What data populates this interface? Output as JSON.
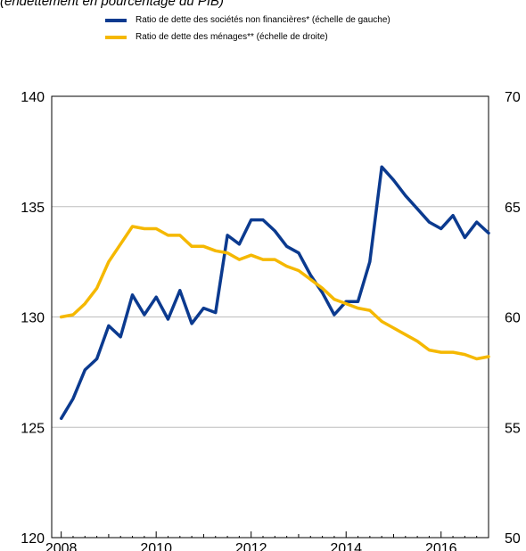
{
  "chart_data": {
    "type": "line",
    "subtitle": "(endettement en pourcentage du PIB)",
    "xlim": [
      2007.8,
      2017.0
    ],
    "x_ticks": [
      2008,
      2010,
      2012,
      2014,
      2016
    ],
    "x_tick_labels": [
      "2008",
      "2010",
      "2012",
      "2014",
      "2016"
    ],
    "y_left": {
      "lim": [
        120,
        140
      ],
      "ticks": [
        120,
        125,
        130,
        135,
        140
      ],
      "labels": [
        "120",
        "125",
        "130",
        "135",
        "140"
      ]
    },
    "y_right": {
      "lim": [
        50,
        70
      ],
      "ticks": [
        50,
        55,
        60,
        65,
        70
      ],
      "labels": [
        "50",
        "55",
        "60",
        "65",
        "70"
      ]
    },
    "grid": "horizontal",
    "legend_position": "top-center",
    "series": [
      {
        "name": "Ratio de dette des sociétés non financières* (échelle de gauche)",
        "axis": "left",
        "color": "#0b3a8f",
        "x": [
          2008.0,
          2008.25,
          2008.5,
          2008.75,
          2009.0,
          2009.25,
          2009.5,
          2009.75,
          2010.0,
          2010.25,
          2010.5,
          2010.75,
          2011.0,
          2011.25,
          2011.5,
          2011.75,
          2012.0,
          2012.25,
          2012.5,
          2012.75,
          2013.0,
          2013.25,
          2013.5,
          2013.75,
          2014.0,
          2014.25,
          2014.5,
          2014.75,
          2015.0,
          2015.25,
          2015.5,
          2015.75,
          2016.0,
          2016.25,
          2016.5,
          2016.75,
          2017.0
        ],
        "values": [
          125.4,
          126.3,
          127.6,
          128.1,
          129.6,
          129.1,
          131.0,
          130.1,
          130.9,
          129.9,
          131.2,
          129.7,
          130.4,
          130.2,
          133.7,
          133.3,
          134.4,
          134.4,
          133.9,
          133.2,
          132.9,
          131.9,
          131.1,
          130.1,
          130.7,
          130.7,
          132.5,
          136.8,
          136.2,
          135.5,
          134.9,
          134.3,
          134.0,
          134.6,
          133.6,
          134.3,
          133.8
        ]
      },
      {
        "name": "Ratio de dette des ménages** (échelle de droite)",
        "axis": "right",
        "color": "#f5b800",
        "x": [
          2008.0,
          2008.25,
          2008.5,
          2008.75,
          2009.0,
          2009.25,
          2009.5,
          2009.75,
          2010.0,
          2010.25,
          2010.5,
          2010.75,
          2011.0,
          2011.25,
          2011.5,
          2011.75,
          2012.0,
          2012.25,
          2012.5,
          2012.75,
          2013.0,
          2013.25,
          2013.5,
          2013.75,
          2014.0,
          2014.25,
          2014.5,
          2014.75,
          2015.0,
          2015.25,
          2015.5,
          2015.75,
          2016.0,
          2016.25,
          2016.5,
          2016.75,
          2017.0
        ],
        "values": [
          60.0,
          60.1,
          60.6,
          61.3,
          62.5,
          63.3,
          64.1,
          64.0,
          64.0,
          63.7,
          63.7,
          63.2,
          63.2,
          63.0,
          62.9,
          62.6,
          62.8,
          62.6,
          62.6,
          62.3,
          62.1,
          61.7,
          61.3,
          60.8,
          60.6,
          60.4,
          60.3,
          59.8,
          59.5,
          59.2,
          58.9,
          58.5,
          58.4,
          58.4,
          58.3,
          58.1,
          58.2
        ]
      }
    ]
  }
}
